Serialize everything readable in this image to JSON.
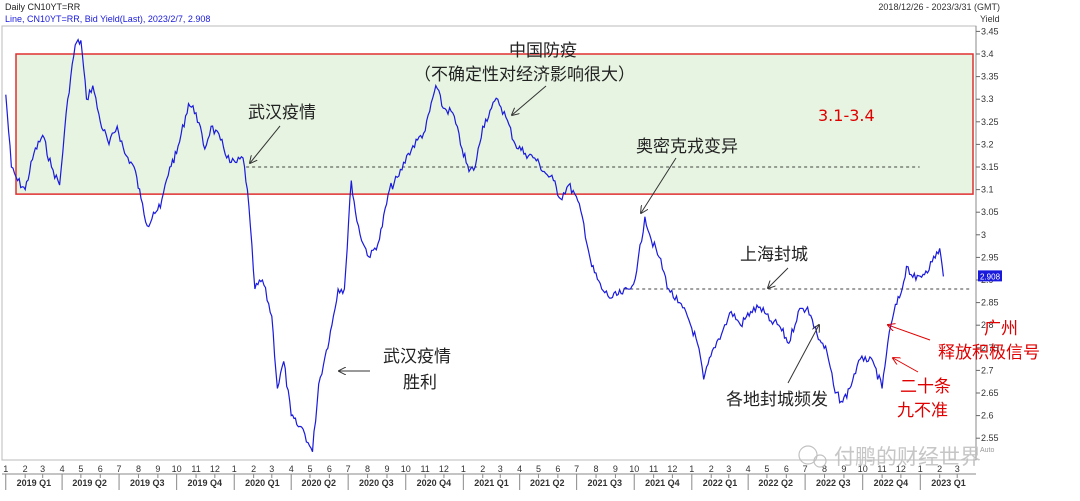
{
  "header": {
    "title": "Daily CN10YT=RR",
    "legend": "Line, CN10YT=RR, Bid Yield(Last), 2023/2/7, 2.908",
    "range": "2018/12/26 - 2023/3/31 (GMT)",
    "unit": "Yield",
    "axis_suffix": "Auto"
  },
  "watermark": "付鹏的财经世界",
  "chart_data": {
    "type": "line",
    "series_name": "CN10YT=RR Bid Yield(Last)",
    "last_value": "2.908",
    "y_ticks": [
      "3.45",
      "3.4",
      "3.35",
      "3.3",
      "3.25",
      "3.2",
      "3.15",
      "3.1",
      "3.05",
      "3",
      "2.95",
      "2.9",
      "2.85",
      "2.8",
      "2.75",
      "2.7",
      "2.65",
      "2.6",
      "2.55"
    ],
    "ylim": [
      2.5,
      3.47
    ],
    "x_points": [
      {
        "d": "2019-01-01",
        "v": 3.31
      },
      {
        "d": "2019-01-10",
        "v": 3.15
      },
      {
        "d": "2019-01-20",
        "v": 3.12
      },
      {
        "d": "2019-02-01",
        "v": 3.1
      },
      {
        "d": "2019-02-15",
        "v": 3.18
      },
      {
        "d": "2019-03-01",
        "v": 3.22
      },
      {
        "d": "2019-03-15",
        "v": 3.15
      },
      {
        "d": "2019-03-28",
        "v": 3.11
      },
      {
        "d": "2019-04-10",
        "v": 3.3
      },
      {
        "d": "2019-04-22",
        "v": 3.42
      },
      {
        "d": "2019-05-01",
        "v": 3.43
      },
      {
        "d": "2019-05-10",
        "v": 3.3
      },
      {
        "d": "2019-05-20",
        "v": 3.33
      },
      {
        "d": "2019-06-01",
        "v": 3.25
      },
      {
        "d": "2019-06-15",
        "v": 3.2
      },
      {
        "d": "2019-06-28",
        "v": 3.24
      },
      {
        "d": "2019-07-10",
        "v": 3.18
      },
      {
        "d": "2019-07-25",
        "v": 3.15
      },
      {
        "d": "2019-08-05",
        "v": 3.08
      },
      {
        "d": "2019-08-15",
        "v": 3.02
      },
      {
        "d": "2019-08-25",
        "v": 3.05
      },
      {
        "d": "2019-09-05",
        "v": 3.06
      },
      {
        "d": "2019-09-20",
        "v": 3.15
      },
      {
        "d": "2019-10-01",
        "v": 3.18
      },
      {
        "d": "2019-10-20",
        "v": 3.29
      },
      {
        "d": "2019-11-01",
        "v": 3.27
      },
      {
        "d": "2019-11-15",
        "v": 3.19
      },
      {
        "d": "2019-11-25",
        "v": 3.24
      },
      {
        "d": "2019-12-10",
        "v": 3.21
      },
      {
        "d": "2019-12-25",
        "v": 3.16
      },
      {
        "d": "2020-01-05",
        "v": 3.16
      },
      {
        "d": "2020-01-15",
        "v": 3.17
      },
      {
        "d": "2020-01-22",
        "v": 3.1
      },
      {
        "d": "2020-02-03",
        "v": 2.88
      },
      {
        "d": "2020-02-15",
        "v": 2.9
      },
      {
        "d": "2020-03-01",
        "v": 2.82
      },
      {
        "d": "2020-03-10",
        "v": 2.66
      },
      {
        "d": "2020-03-20",
        "v": 2.72
      },
      {
        "d": "2020-04-01",
        "v": 2.6
      },
      {
        "d": "2020-04-10",
        "v": 2.58
      },
      {
        "d": "2020-04-20",
        "v": 2.57
      },
      {
        "d": "2020-04-28",
        "v": 2.54
      },
      {
        "d": "2020-05-05",
        "v": 2.52
      },
      {
        "d": "2020-05-15",
        "v": 2.67
      },
      {
        "d": "2020-05-25",
        "v": 2.73
      },
      {
        "d": "2020-06-05",
        "v": 2.8
      },
      {
        "d": "2020-06-15",
        "v": 2.88
      },
      {
        "d": "2020-06-25",
        "v": 2.88
      },
      {
        "d": "2020-07-06",
        "v": 3.12
      },
      {
        "d": "2020-07-15",
        "v": 3.03
      },
      {
        "d": "2020-07-25",
        "v": 2.98
      },
      {
        "d": "2020-08-05",
        "v": 2.95
      },
      {
        "d": "2020-08-20",
        "v": 2.99
      },
      {
        "d": "2020-09-05",
        "v": 3.1
      },
      {
        "d": "2020-09-20",
        "v": 3.13
      },
      {
        "d": "2020-10-05",
        "v": 3.18
      },
      {
        "d": "2020-10-20",
        "v": 3.21
      },
      {
        "d": "2020-11-01",
        "v": 3.23
      },
      {
        "d": "2020-11-18",
        "v": 3.33
      },
      {
        "d": "2020-11-30",
        "v": 3.28
      },
      {
        "d": "2020-12-15",
        "v": 3.27
      },
      {
        "d": "2020-12-30",
        "v": 3.19
      },
      {
        "d": "2021-01-10",
        "v": 3.14
      },
      {
        "d": "2021-01-20",
        "v": 3.15
      },
      {
        "d": "2021-02-01",
        "v": 3.24
      },
      {
        "d": "2021-02-15",
        "v": 3.28
      },
      {
        "d": "2021-02-25",
        "v": 3.3
      },
      {
        "d": "2021-03-10",
        "v": 3.26
      },
      {
        "d": "2021-03-25",
        "v": 3.2
      },
      {
        "d": "2021-04-10",
        "v": 3.18
      },
      {
        "d": "2021-04-25",
        "v": 3.17
      },
      {
        "d": "2021-05-10",
        "v": 3.14
      },
      {
        "d": "2021-05-25",
        "v": 3.12
      },
      {
        "d": "2021-06-05",
        "v": 3.08
      },
      {
        "d": "2021-06-18",
        "v": 3.11
      },
      {
        "d": "2021-06-28",
        "v": 3.09
      },
      {
        "d": "2021-07-10",
        "v": 3.04
      },
      {
        "d": "2021-07-25",
        "v": 2.93
      },
      {
        "d": "2021-08-10",
        "v": 2.88
      },
      {
        "d": "2021-08-25",
        "v": 2.86
      },
      {
        "d": "2021-09-10",
        "v": 2.87
      },
      {
        "d": "2021-09-25",
        "v": 2.88
      },
      {
        "d": "2021-10-05",
        "v": 2.92
      },
      {
        "d": "2021-10-18",
        "v": 3.04
      },
      {
        "d": "2021-10-28",
        "v": 2.99
      },
      {
        "d": "2021-11-10",
        "v": 2.95
      },
      {
        "d": "2021-11-25",
        "v": 2.88
      },
      {
        "d": "2021-12-10",
        "v": 2.85
      },
      {
        "d": "2021-12-25",
        "v": 2.82
      },
      {
        "d": "2022-01-10",
        "v": 2.76
      },
      {
        "d": "2022-01-20",
        "v": 2.68
      },
      {
        "d": "2022-02-05",
        "v": 2.75
      },
      {
        "d": "2022-02-20",
        "v": 2.79
      },
      {
        "d": "2022-03-05",
        "v": 2.83
      },
      {
        "d": "2022-03-20",
        "v": 2.8
      },
      {
        "d": "2022-04-05",
        "v": 2.83
      },
      {
        "d": "2022-04-20",
        "v": 2.84
      },
      {
        "d": "2022-05-05",
        "v": 2.81
      },
      {
        "d": "2022-05-20",
        "v": 2.8
      },
      {
        "d": "2022-06-05",
        "v": 2.76
      },
      {
        "d": "2022-06-20",
        "v": 2.83
      },
      {
        "d": "2022-07-05",
        "v": 2.84
      },
      {
        "d": "2022-07-20",
        "v": 2.78
      },
      {
        "d": "2022-08-05",
        "v": 2.74
      },
      {
        "d": "2022-08-18",
        "v": 2.65
      },
      {
        "d": "2022-08-30",
        "v": 2.63
      },
      {
        "d": "2022-09-10",
        "v": 2.66
      },
      {
        "d": "2022-09-22",
        "v": 2.71
      },
      {
        "d": "2022-10-05",
        "v": 2.73
      },
      {
        "d": "2022-10-20",
        "v": 2.71
      },
      {
        "d": "2022-11-01",
        "v": 2.66
      },
      {
        "d": "2022-11-10",
        "v": 2.76
      },
      {
        "d": "2022-11-20",
        "v": 2.83
      },
      {
        "d": "2022-12-01",
        "v": 2.87
      },
      {
        "d": "2022-12-10",
        "v": 2.93
      },
      {
        "d": "2022-12-25",
        "v": 2.9
      },
      {
        "d": "2023-01-10",
        "v": 2.92
      },
      {
        "d": "2023-01-20",
        "v": 2.94
      },
      {
        "d": "2023-02-01",
        "v": 2.97
      },
      {
        "d": "2023-02-07",
        "v": 2.908
      }
    ],
    "x_domain": [
      "2018-12-26",
      "2023-03-31"
    ],
    "x_tick_months": [
      {
        "d": "2019-01-01",
        "label": "1"
      },
      {
        "d": "2019-02-01",
        "label": "2"
      },
      {
        "d": "2019-03-01",
        "label": "3"
      },
      {
        "d": "2019-04-01",
        "label": "4"
      },
      {
        "d": "2019-05-01",
        "label": "5"
      },
      {
        "d": "2019-06-01",
        "label": "6"
      },
      {
        "d": "2019-07-01",
        "label": "7"
      },
      {
        "d": "2019-08-01",
        "label": "8"
      },
      {
        "d": "2019-09-01",
        "label": "9"
      },
      {
        "d": "2019-10-01",
        "label": "10"
      },
      {
        "d": "2019-11-01",
        "label": "11"
      },
      {
        "d": "2019-12-01",
        "label": "12"
      },
      {
        "d": "2020-01-01",
        "label": "1"
      },
      {
        "d": "2020-02-01",
        "label": "2"
      },
      {
        "d": "2020-03-01",
        "label": "3"
      },
      {
        "d": "2020-04-01",
        "label": "4"
      },
      {
        "d": "2020-05-01",
        "label": "5"
      },
      {
        "d": "2020-06-01",
        "label": "6"
      },
      {
        "d": "2020-07-01",
        "label": "7"
      },
      {
        "d": "2020-08-01",
        "label": "8"
      },
      {
        "d": "2020-09-01",
        "label": "9"
      },
      {
        "d": "2020-10-01",
        "label": "10"
      },
      {
        "d": "2020-11-01",
        "label": "11"
      },
      {
        "d": "2020-12-01",
        "label": "12"
      },
      {
        "d": "2021-01-01",
        "label": "1"
      },
      {
        "d": "2021-02-01",
        "label": "2"
      },
      {
        "d": "2021-03-01",
        "label": "3"
      },
      {
        "d": "2021-04-01",
        "label": "4"
      },
      {
        "d": "2021-05-01",
        "label": "5"
      },
      {
        "d": "2021-06-01",
        "label": "6"
      },
      {
        "d": "2021-07-01",
        "label": "7"
      },
      {
        "d": "2021-08-01",
        "label": "8"
      },
      {
        "d": "2021-09-01",
        "label": "9"
      },
      {
        "d": "2021-10-01",
        "label": "10"
      },
      {
        "d": "2021-11-01",
        "label": "11"
      },
      {
        "d": "2021-12-01",
        "label": "12"
      },
      {
        "d": "2022-01-01",
        "label": "1"
      },
      {
        "d": "2022-02-01",
        "label": "2"
      },
      {
        "d": "2022-03-01",
        "label": "3"
      },
      {
        "d": "2022-04-01",
        "label": "4"
      },
      {
        "d": "2022-05-01",
        "label": "5"
      },
      {
        "d": "2022-06-01",
        "label": "6"
      },
      {
        "d": "2022-07-01",
        "label": "7"
      },
      {
        "d": "2022-08-01",
        "label": "8"
      },
      {
        "d": "2022-09-01",
        "label": "9"
      },
      {
        "d": "2022-10-01",
        "label": "10"
      },
      {
        "d": "2022-11-01",
        "label": "11"
      },
      {
        "d": "2022-12-01",
        "label": "12"
      },
      {
        "d": "2023-01-01",
        "label": "1"
      },
      {
        "d": "2023-02-01",
        "label": "2"
      },
      {
        "d": "2023-03-01",
        "label": "3"
      }
    ],
    "x_quarter_labels": [
      {
        "d": "2019-02-15",
        "label": "2019 Q1"
      },
      {
        "d": "2019-05-15",
        "label": "2019 Q2"
      },
      {
        "d": "2019-08-15",
        "label": "2019 Q3"
      },
      {
        "d": "2019-11-15",
        "label": "2019 Q4"
      },
      {
        "d": "2020-02-15",
        "label": "2020 Q1"
      },
      {
        "d": "2020-05-15",
        "label": "2020 Q2"
      },
      {
        "d": "2020-08-15",
        "label": "2020 Q3"
      },
      {
        "d": "2020-11-15",
        "label": "2020 Q4"
      },
      {
        "d": "2021-02-15",
        "label": "2021 Q1"
      },
      {
        "d": "2021-05-15",
        "label": "2021 Q2"
      },
      {
        "d": "2021-08-15",
        "label": "2021 Q3"
      },
      {
        "d": "2021-11-15",
        "label": "2021 Q4"
      },
      {
        "d": "2022-02-15",
        "label": "2022 Q1"
      },
      {
        "d": "2022-05-15",
        "label": "2022 Q2"
      },
      {
        "d": "2022-08-15",
        "label": "2022 Q3"
      },
      {
        "d": "2022-11-15",
        "label": "2022 Q4"
      },
      {
        "d": "2023-02-15",
        "label": "2023 Q1"
      }
    ],
    "band": {
      "low": 3.09,
      "high": 3.4,
      "label": "3.1-3.4",
      "fill": "#e6f4e1",
      "stroke": "#e03030"
    },
    "reference_lines": [
      {
        "y": 3.15,
        "from": "2020-01-20",
        "to": "2022-12-31"
      },
      {
        "y": 2.88,
        "from": "2021-09-15",
        "to": "2023-03-31"
      }
    ],
    "annotations": [
      {
        "id": "wuhan",
        "text": "武汉疫情"
      },
      {
        "id": "china1",
        "text": "中国防疫"
      },
      {
        "id": "china2",
        "text": "（不确定性对经济影响很大）"
      },
      {
        "id": "omicron",
        "text": "奥密克戎变异"
      },
      {
        "id": "shanghai",
        "text": "上海封城"
      },
      {
        "id": "victory1",
        "text": "武汉疫情"
      },
      {
        "id": "victory2",
        "text": "胜利"
      },
      {
        "id": "lockdowns",
        "text": "各地封城频发"
      },
      {
        "id": "gz1",
        "text": "广州"
      },
      {
        "id": "gz2",
        "text": "释放积极信号"
      },
      {
        "id": "twenty1",
        "text": "二十条"
      },
      {
        "id": "twenty2",
        "text": "九不准"
      }
    ],
    "colors": {
      "line": "#1a1adc",
      "price_tag": "#1a1adc",
      "red_text": "#e00000",
      "grid": "#d8d8d8"
    }
  }
}
